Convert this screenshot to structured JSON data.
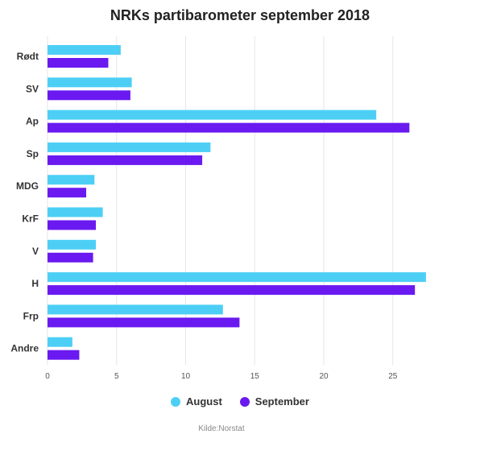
{
  "chart_data": {
    "type": "bar",
    "orientation": "horizontal",
    "title": "NRKs partibarometer september 2018",
    "categories": [
      "Rødt",
      "SV",
      "Ap",
      "Sp",
      "MDG",
      "KrF",
      "V",
      "H",
      "Frp",
      "Andre"
    ],
    "series": [
      {
        "name": "August",
        "color": "#4dcff5",
        "values": [
          5.3,
          6.1,
          23.8,
          11.8,
          3.4,
          4.0,
          3.5,
          27.4,
          12.7,
          1.8
        ]
      },
      {
        "name": "September",
        "color": "#6a1af0",
        "values": [
          4.4,
          6.0,
          26.2,
          11.2,
          2.8,
          3.5,
          3.3,
          26.6,
          13.9,
          2.3
        ]
      }
    ],
    "xlim": [
      0,
      28
    ],
    "xticks": [
      0,
      5,
      10,
      15,
      20,
      25
    ],
    "grid": true,
    "legend_position": "bottom"
  },
  "source": "Kilde:Norstat"
}
